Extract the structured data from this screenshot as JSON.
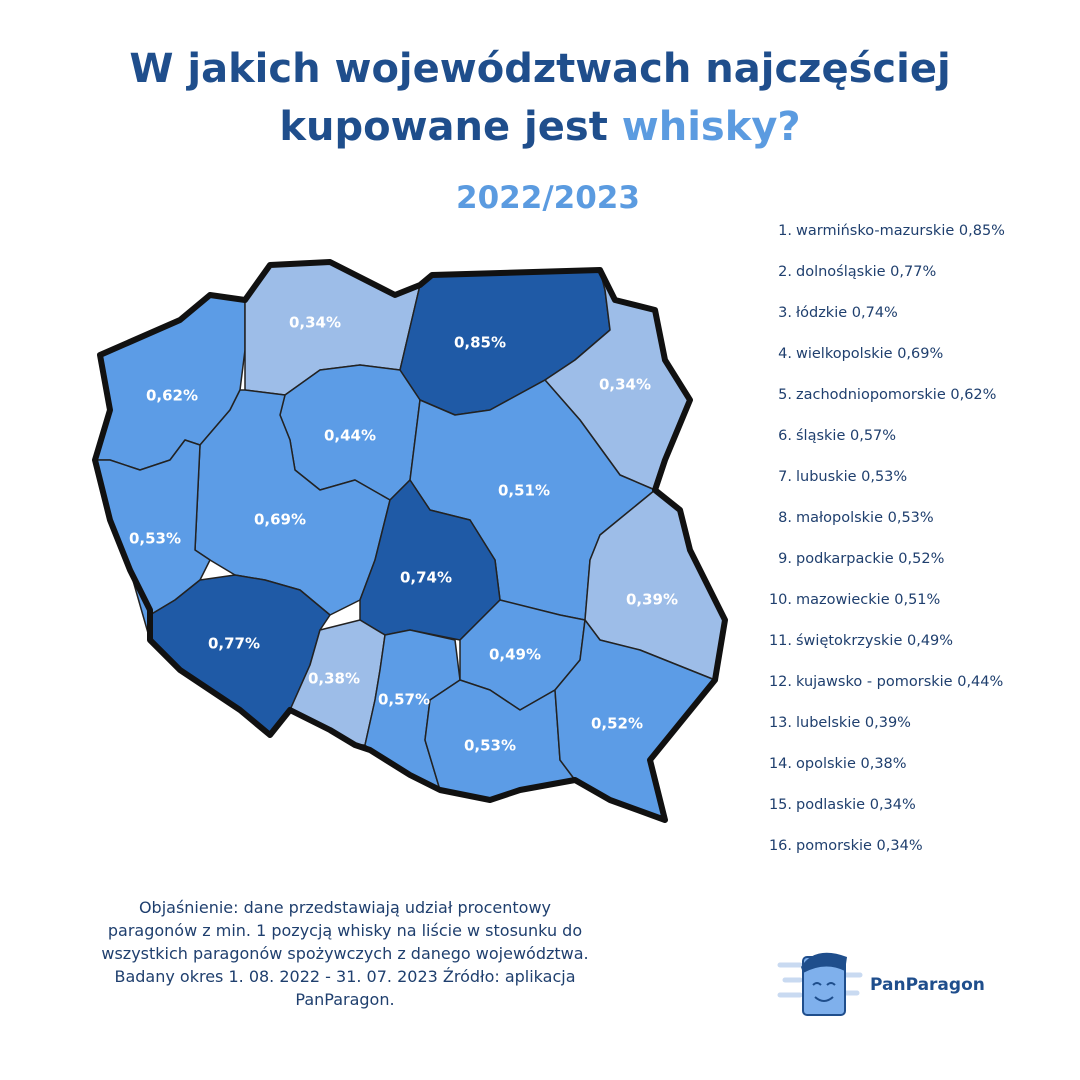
{
  "header": {
    "title_line1": "W jakich województwach najczęściej",
    "title_line2": "kupowane jest",
    "title_highlight": "whisky?",
    "period": "2022/2023"
  },
  "map": {
    "regions": [
      {
        "label": "0,62%",
        "color": "#5c9ce6"
      },
      {
        "label": "0,34%",
        "color": "#9dbde8"
      },
      {
        "label": "0,85%",
        "color": "#1f5aa6"
      },
      {
        "label": "0,34%",
        "color": "#9dbde8"
      },
      {
        "label": "0,44%",
        "color": "#5c9ce6"
      },
      {
        "label": "0,51%",
        "color": "#5c9ce6"
      },
      {
        "label": "0,69%",
        "color": "#5c9ce6"
      },
      {
        "label": "0,53%",
        "color": "#5c9ce6"
      },
      {
        "label": "0,74%",
        "color": "#1f5aa6"
      },
      {
        "label": "0,39%",
        "color": "#9dbde8"
      },
      {
        "label": "0,77%",
        "color": "#1f5aa6"
      },
      {
        "label": "0,38%",
        "color": "#9dbde8"
      },
      {
        "label": "0,57%",
        "color": "#5c9ce6"
      },
      {
        "label": "0,49%",
        "color": "#5c9ce6"
      },
      {
        "label": "0,53%",
        "color": "#5c9ce6"
      },
      {
        "label": "0,52%",
        "color": "#5c9ce6"
      }
    ]
  },
  "ranking": [
    {
      "rank": "1.",
      "name": "warmińsko-mazurskie",
      "value": "0,85%"
    },
    {
      "rank": "2.",
      "name": "dolnośląskie",
      "value": "0,77%"
    },
    {
      "rank": "3.",
      "name": "łódzkie",
      "value": "0,74%"
    },
    {
      "rank": "4.",
      "name": "wielkopolskie",
      "value": "0,69%"
    },
    {
      "rank": "5.",
      "name": "zachodniopomorskie",
      "value": "0,62%"
    },
    {
      "rank": "6.",
      "name": "śląskie",
      "value": "0,57%"
    },
    {
      "rank": "7.",
      "name": "lubuskie",
      "value": "0,53%"
    },
    {
      "rank": "8.",
      "name": "małopolskie",
      "value": "0,53%"
    },
    {
      "rank": "9.",
      "name": "podkarpackie",
      "value": "0,52%"
    },
    {
      "rank": "10.",
      "name": "mazowieckie",
      "value": "0,51%"
    },
    {
      "rank": "11.",
      "name": "świętokrzyskie",
      "value": "0,49%"
    },
    {
      "rank": "12.",
      "name": "kujawsko - pomorskie",
      "value": "0,44%"
    },
    {
      "rank": "13.",
      "name": "lubelskie",
      "value": "0,39%"
    },
    {
      "rank": "14.",
      "name": "opolskie",
      "value": "0,38%"
    },
    {
      "rank": "15.",
      "name": "podlaskie",
      "value": "0,34%"
    },
    {
      "rank": "16.",
      "name": "pomorskie",
      "value": "0,34%"
    }
  ],
  "footer": {
    "note": "Objaśnienie: dane przedstawiają udział procentowy paragonów z min. 1 pozycją whisky na liście w stosunku do wszystkich paragonów spożywczych z danego województwa. Badany okres 1. 08. 2022 - 31. 07. 2023 Źródło:  aplikacja PanParagon.",
    "brand": "PanParagon"
  }
}
